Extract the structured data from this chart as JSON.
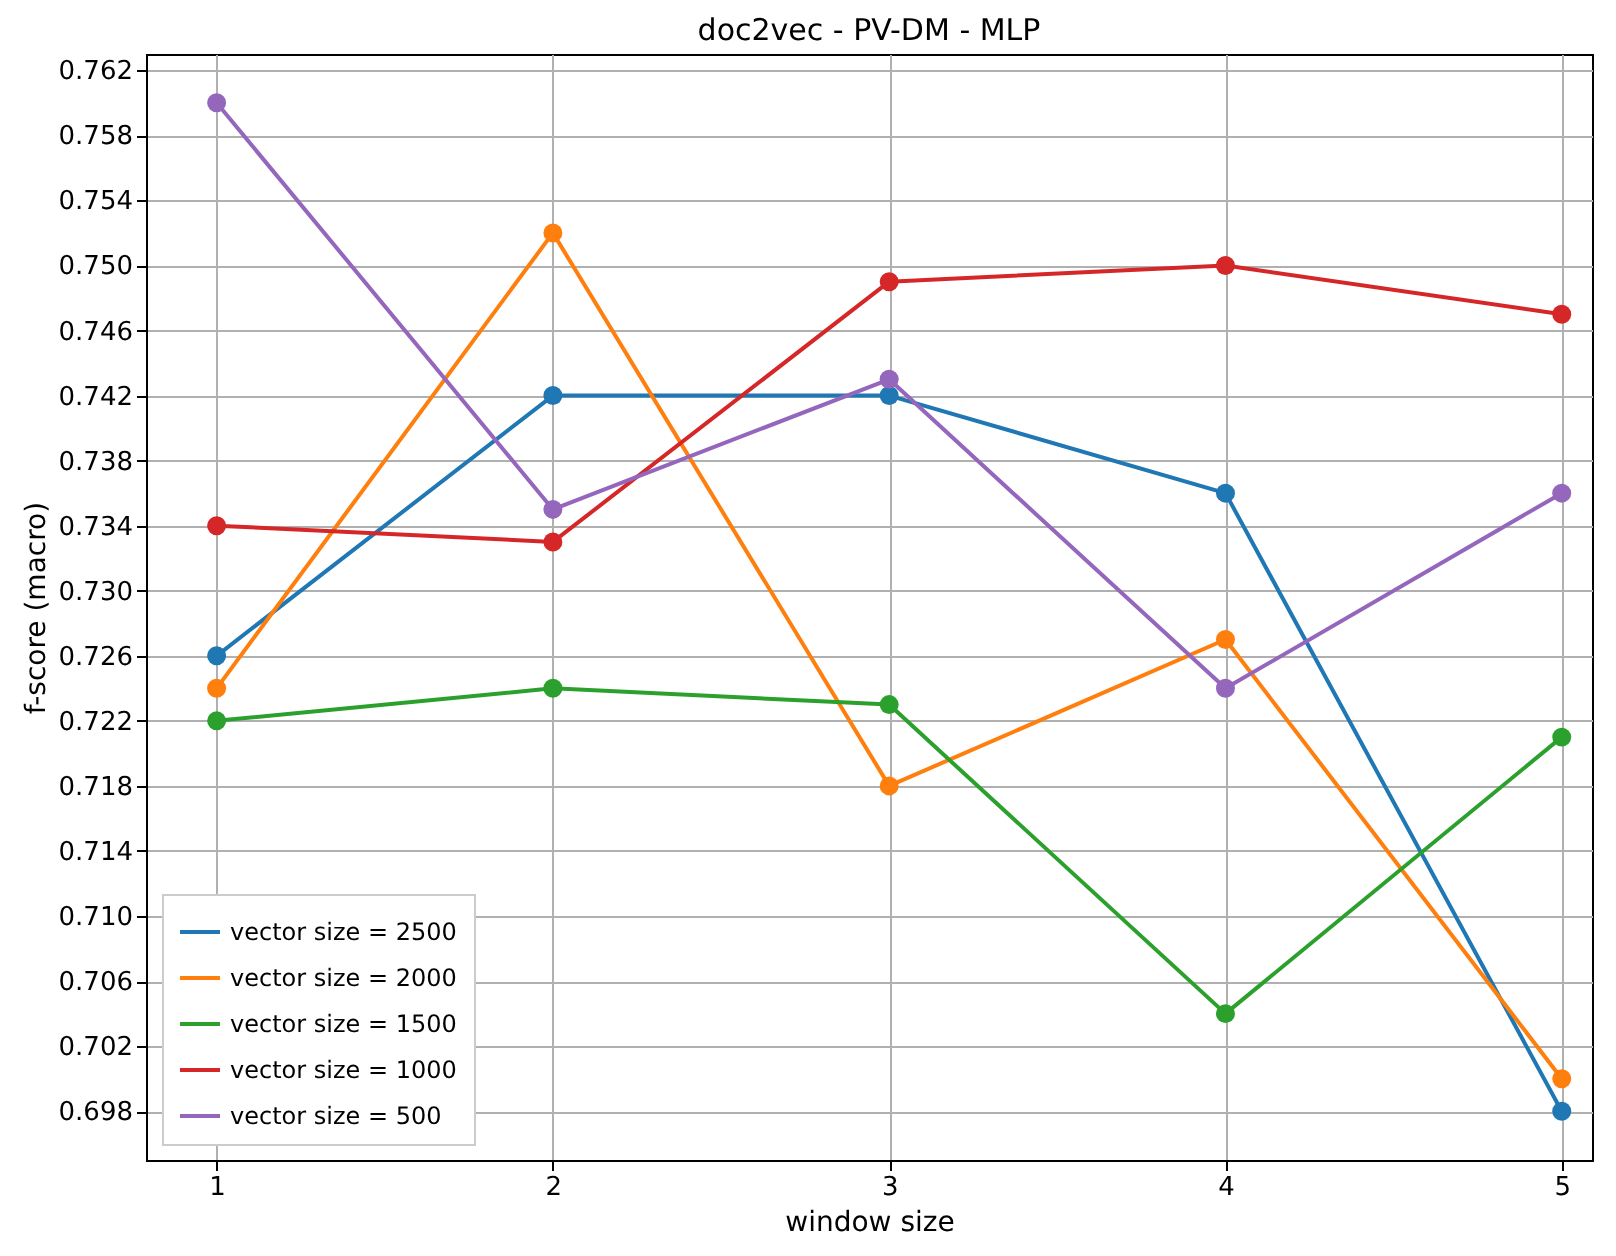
{
  "chart_data": {
    "type": "line",
    "title": "doc2vec - PV-DM - MLP",
    "xlabel": "window size",
    "ylabel": "f-score (macro)",
    "x": [
      1,
      2,
      3,
      4,
      5
    ],
    "series": [
      {
        "name": "vector size = 2500",
        "color": "#1f77b4",
        "values": [
          0.726,
          0.742,
          0.742,
          0.736,
          0.698
        ]
      },
      {
        "name": "vector size = 2000",
        "color": "#ff7f0e",
        "values": [
          0.724,
          0.752,
          0.718,
          0.727,
          0.7
        ]
      },
      {
        "name": "vector size = 1500",
        "color": "#2ca02c",
        "values": [
          0.722,
          0.724,
          0.723,
          0.704,
          0.721
        ]
      },
      {
        "name": "vector size = 1000",
        "color": "#d62728",
        "values": [
          0.734,
          0.733,
          0.749,
          0.75,
          0.747
        ]
      },
      {
        "name": "vector size = 500",
        "color": "#9467bd",
        "values": [
          0.76,
          0.735,
          0.743,
          0.724,
          0.736
        ]
      }
    ],
    "xlim": [
      0.79,
      5.09
    ],
    "ylim": [
      0.695,
      0.763
    ],
    "xticks": [
      1,
      2,
      3,
      4,
      5
    ],
    "yticks": [
      0.698,
      0.702,
      0.706,
      {
        "value": 0.71,
        "label": "0.710"
      },
      0.714,
      0.718,
      0.722,
      0.726,
      {
        "value": 0.73,
        "label": "0.730"
      },
      0.734,
      0.738,
      0.742,
      0.746,
      {
        "value": 0.75,
        "label": "0.750"
      },
      0.754,
      0.758,
      0.762
    ],
    "grid": true,
    "legend": "bottom left",
    "marker": "circle",
    "line_style": "solid"
  }
}
